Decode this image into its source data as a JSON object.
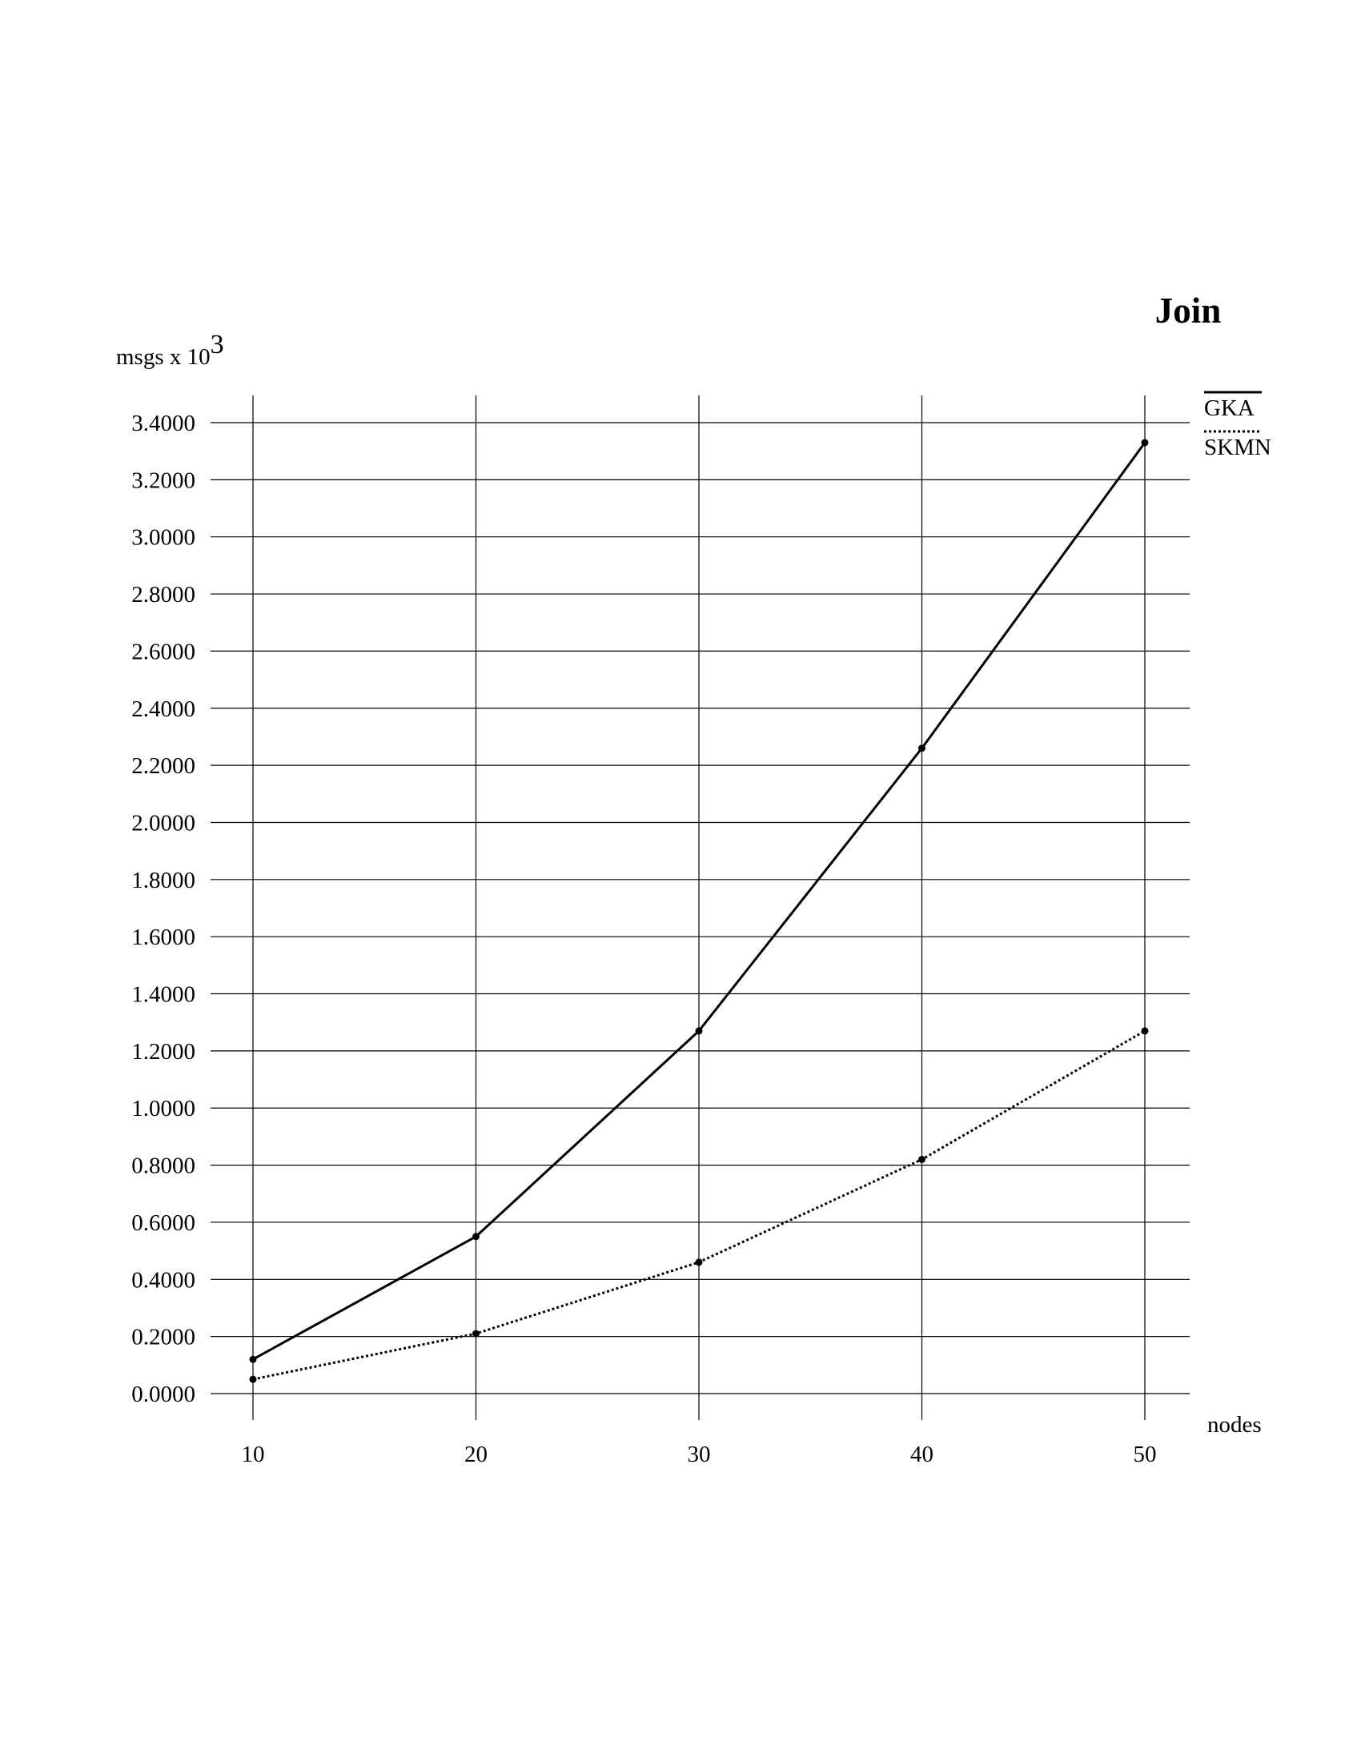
{
  "chart_data": {
    "type": "line",
    "title": "Join",
    "ylabel": "msgs x 10",
    "ylabel_exponent": "3",
    "xlabel": "nodes",
    "x": [
      10,
      20,
      30,
      40,
      50
    ],
    "x_tick_labels": [
      "10",
      "20",
      "30",
      "40",
      "50"
    ],
    "ylim": [
      0,
      3.4
    ],
    "y_ticks": [
      0,
      0.2,
      0.4,
      0.6,
      0.8,
      1.0,
      1.2,
      1.4,
      1.6,
      1.8,
      2.0,
      2.2,
      2.4,
      2.6,
      2.8,
      3.0,
      3.2,
      3.4
    ],
    "y_tick_labels": [
      "0.0000",
      "0.2000",
      "0.4000",
      "0.6000",
      "0.8000",
      "1.0000",
      "1.2000",
      "1.4000",
      "1.6000",
      "1.8000",
      "2.0000",
      "2.2000",
      "2.4000",
      "2.6000",
      "2.8000",
      "3.0000",
      "3.2000",
      "3.4000"
    ],
    "grid": true,
    "legend_position": "top-right",
    "series": [
      {
        "name": "GKA",
        "line_style": "solid",
        "values": [
          0.12,
          0.55,
          1.27,
          2.26,
          3.33
        ]
      },
      {
        "name": "SKMN",
        "line_style": "dotted",
        "values": [
          0.05,
          0.21,
          0.46,
          0.82,
          1.27
        ]
      }
    ]
  }
}
